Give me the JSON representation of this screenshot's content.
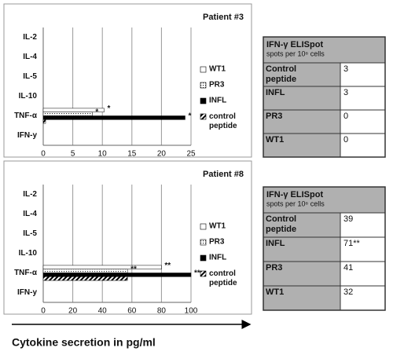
{
  "chart_data": [
    {
      "type": "bar",
      "orientation": "horizontal",
      "title": "Patient #3",
      "categories": [
        "IL-2",
        "IL-4",
        "IL-5",
        "IL-10",
        "TNF-α",
        "IFN-y"
      ],
      "series": [
        {
          "name": "WT1",
          "color": "#ffffff",
          "pattern": "none",
          "values": [
            0,
            0,
            0,
            0,
            10.3,
            0
          ]
        },
        {
          "name": "PR3",
          "color": "#ffffff",
          "pattern": "dots",
          "values": [
            0,
            0,
            0,
            0,
            8.3,
            0
          ]
        },
        {
          "name": "INFL",
          "color": "#000000",
          "pattern": "none",
          "values": [
            0,
            0,
            0,
            0,
            24,
            0
          ]
        },
        {
          "name": "control peptide",
          "color": "#ffffff",
          "pattern": "hatch",
          "values": [
            0,
            0,
            0,
            0,
            0.4,
            0
          ]
        }
      ],
      "annotations": [
        {
          "text": "*",
          "series": "WT1",
          "category": "TNF-α"
        },
        {
          "text": "*",
          "series": "PR3",
          "category": "TNF-α"
        },
        {
          "text": "*",
          "series": "INFL",
          "category": "TNF-α"
        }
      ],
      "xlim": [
        0,
        25
      ],
      "xticks": [
        0,
        5,
        10,
        15,
        20,
        25
      ],
      "grid": true,
      "legend": "right"
    },
    {
      "type": "bar",
      "orientation": "horizontal",
      "title": "Patient #8",
      "categories": [
        "IL-2",
        "IL-4",
        "IL-5",
        "IL-10",
        "TNF-α",
        "IFN-y"
      ],
      "series": [
        {
          "name": "WT1",
          "color": "#ffffff",
          "pattern": "none",
          "values": [
            0,
            0,
            0,
            0,
            80,
            0
          ]
        },
        {
          "name": "PR3",
          "color": "#ffffff",
          "pattern": "dots",
          "values": [
            0,
            0,
            0,
            0,
            57,
            0
          ]
        },
        {
          "name": "INFL",
          "color": "#000000",
          "pattern": "none",
          "values": [
            0,
            0,
            0,
            0,
            100,
            0
          ]
        },
        {
          "name": "control peptide",
          "color": "#ffffff",
          "pattern": "hatch",
          "values": [
            0,
            0,
            0,
            0,
            57,
            0
          ]
        }
      ],
      "annotations": [
        {
          "text": "**",
          "series": "WT1",
          "category": "TNF-α"
        },
        {
          "text": "**",
          "series": "PR3",
          "category": "TNF-α"
        },
        {
          "text": "**",
          "series": "INFL",
          "category": "TNF-α"
        }
      ],
      "xlim": [
        0,
        100
      ],
      "xticks": [
        0,
        20,
        40,
        60,
        80,
        100
      ],
      "grid": true,
      "legend": "right"
    }
  ],
  "tables": [
    {
      "title": "IFN-γ ELISpot",
      "subtitle": "spots per 10⁶ cells",
      "rows": [
        [
          "Control peptide",
          3
        ],
        [
          "INFL",
          3
        ],
        [
          "PR3",
          0
        ],
        [
          "WT1",
          0
        ]
      ]
    },
    {
      "title": "IFN-γ ELISpot",
      "subtitle": "spots per 10⁶ cells",
      "rows": [
        [
          "Control peptide",
          39
        ],
        [
          "INFL",
          "71**"
        ],
        [
          "PR3",
          41
        ],
        [
          "WT1",
          32
        ]
      ]
    }
  ],
  "caption": "Cytokine secretion in pg/ml"
}
